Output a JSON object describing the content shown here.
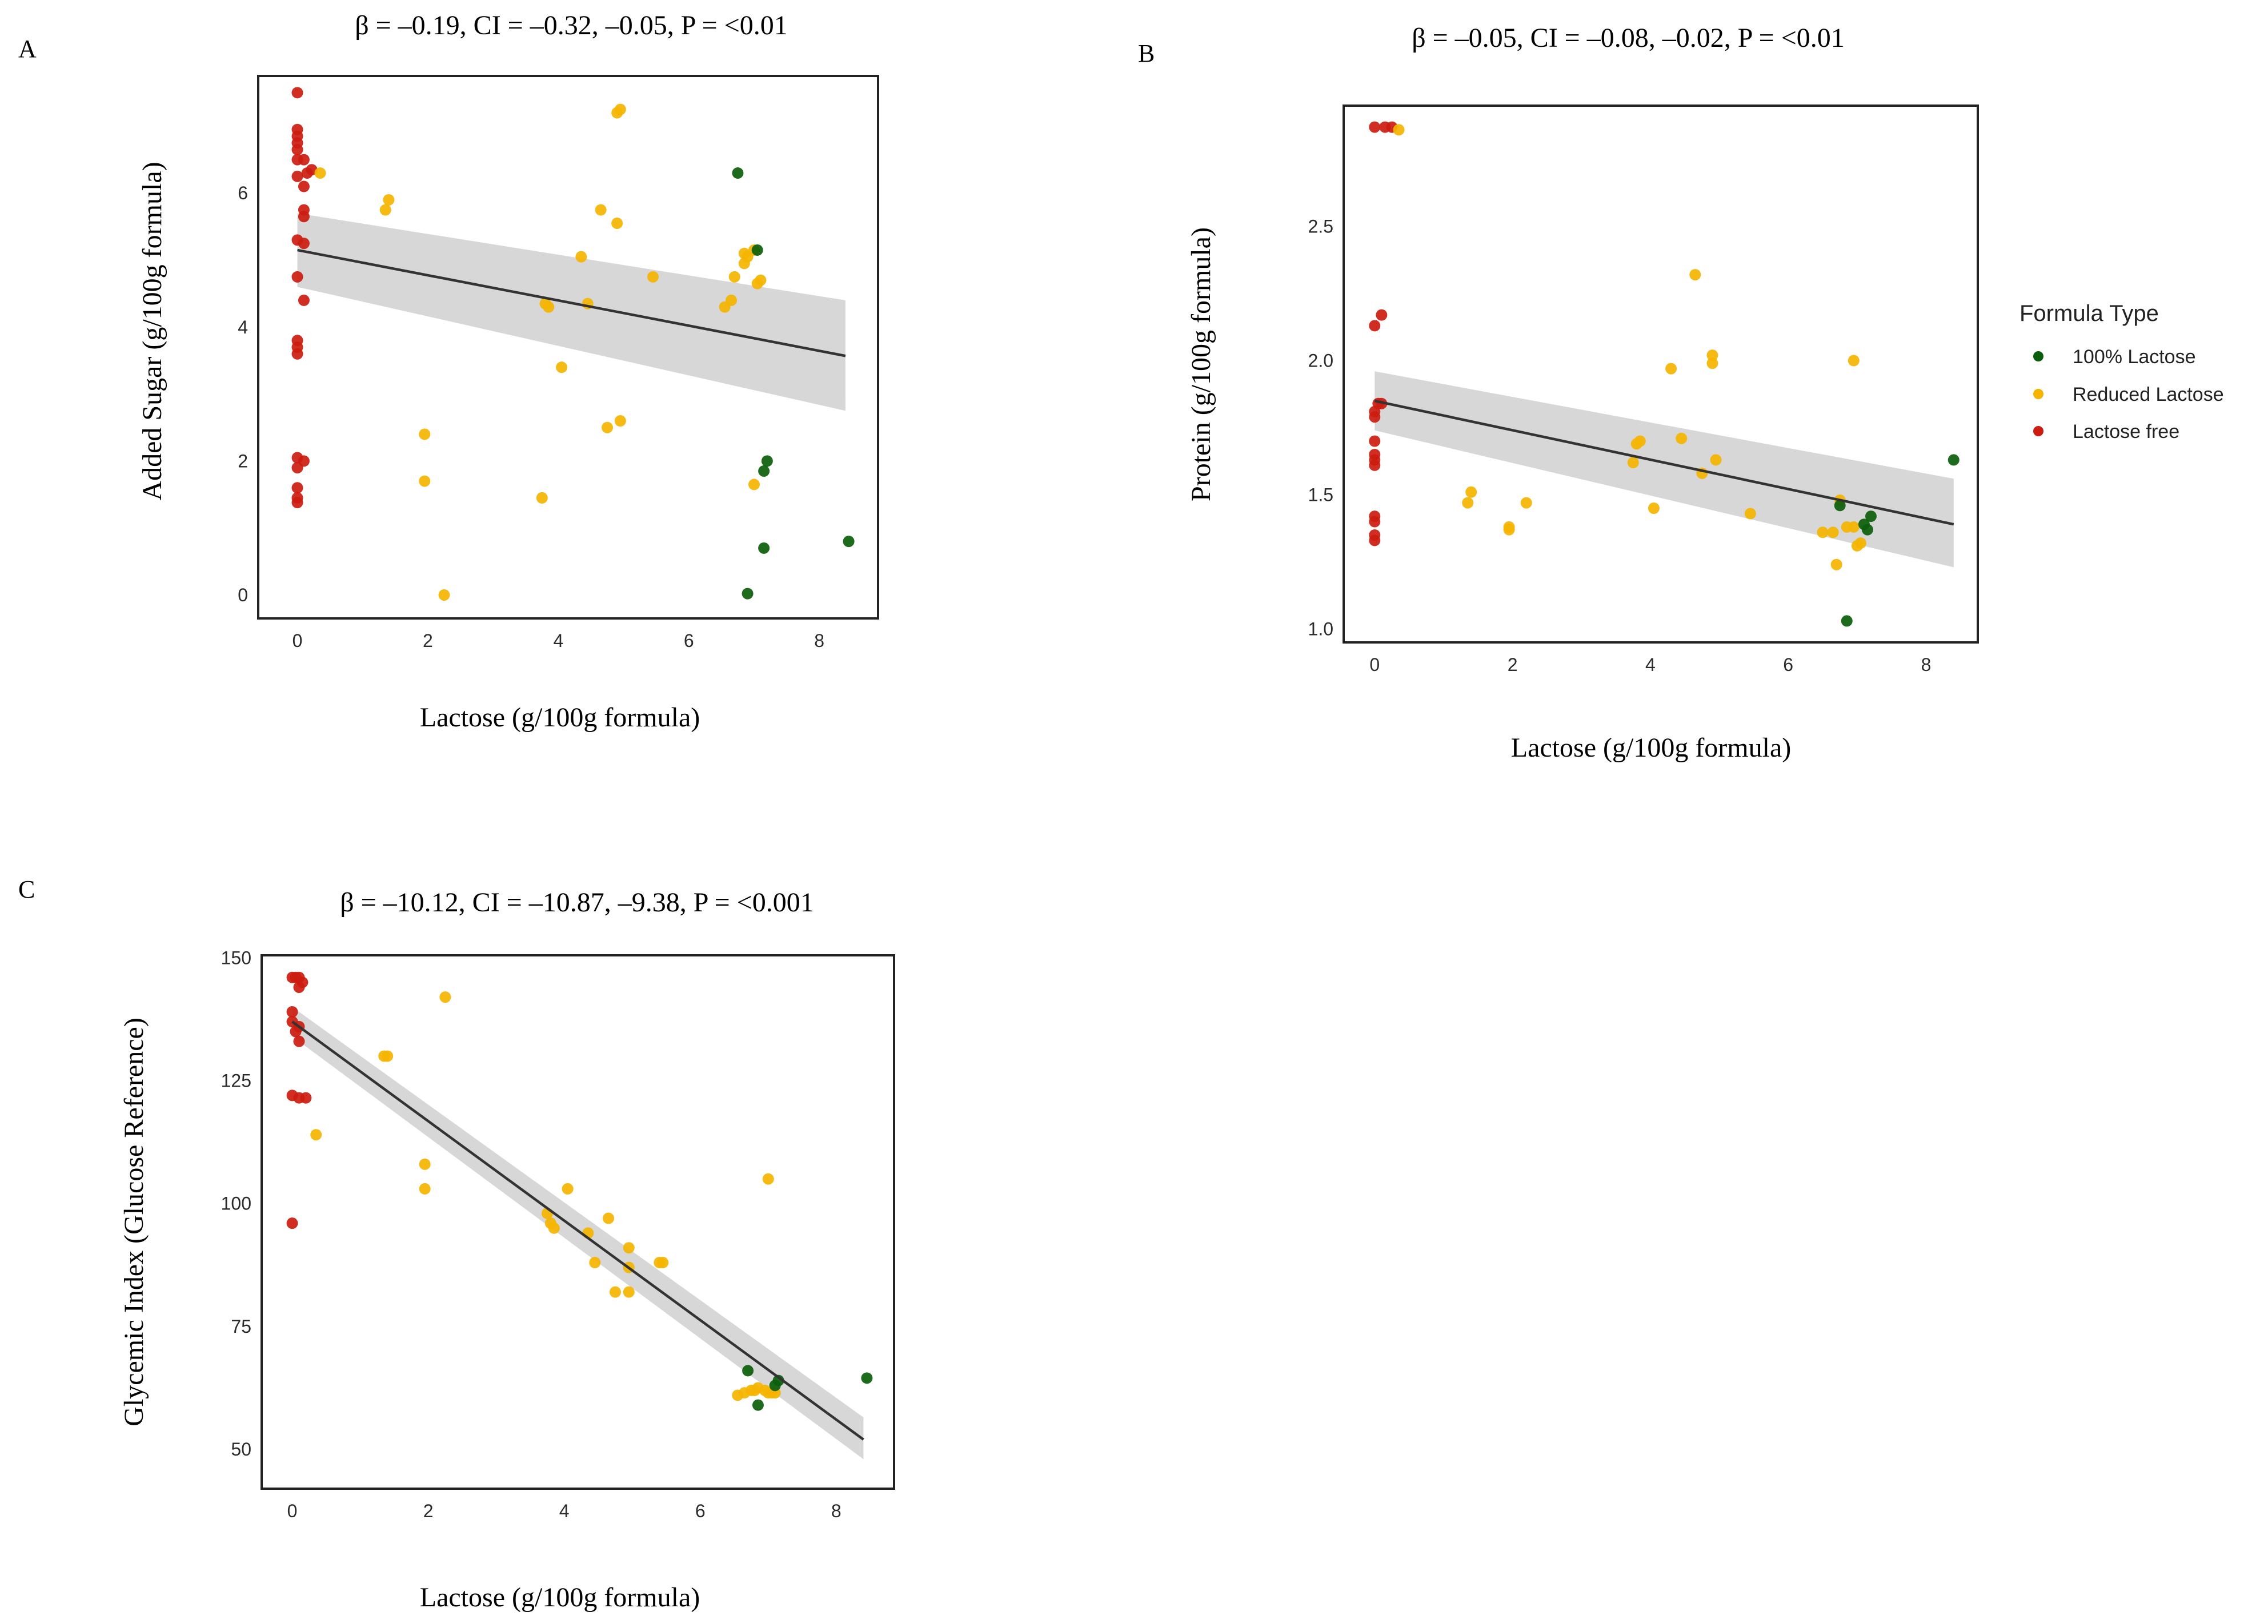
{
  "colors": {
    "lactose100": "#0b5e0b",
    "reduced": "#f5b400",
    "free": "#cc1c10",
    "fit": "#333333",
    "band": "#bdbdbd"
  },
  "legend": {
    "title": "Formula Type",
    "items": [
      {
        "key": "lactose100",
        "label": "100% Lactose"
      },
      {
        "key": "reduced",
        "label": "Reduced Lactose"
      },
      {
        "key": "free",
        "label": "Lactose free"
      }
    ]
  },
  "chart_data": [
    {
      "type": "scatter",
      "panel": "A",
      "title": "β = –0.19, CI = –0.32, –0.05, P = <0.01",
      "xlabel": "Lactose (g/100g formula)",
      "ylabel": "Added Sugar (g/100g formula)",
      "xlim": [
        -0.6,
        8.9
      ],
      "ylim": [
        -0.35,
        7.75
      ],
      "xticks": [
        0,
        2,
        4,
        6,
        8
      ],
      "yticks": [
        0,
        2,
        4,
        6
      ],
      "fit": {
        "x": [
          0,
          8.4
        ],
        "y": [
          5.15,
          3.57
        ],
        "ci_lower": [
          4.6,
          2.75
        ],
        "ci_upper": [
          5.7,
          4.4
        ]
      },
      "series": [
        {
          "name": "Lactose free",
          "color_key": "free",
          "points": [
            [
              0,
              7.5
            ],
            [
              0,
              6.95
            ],
            [
              0,
              6.85
            ],
            [
              0,
              6.75
            ],
            [
              0,
              6.65
            ],
            [
              0,
              6.5
            ],
            [
              0.1,
              6.5
            ],
            [
              0,
              6.25
            ],
            [
              0.15,
              6.3
            ],
            [
              0.22,
              6.35
            ],
            [
              0.1,
              6.1
            ],
            [
              0.1,
              5.75
            ],
            [
              0.1,
              5.65
            ],
            [
              0,
              5.3
            ],
            [
              0.1,
              5.25
            ],
            [
              0,
              4.75
            ],
            [
              0.1,
              4.4
            ],
            [
              0,
              3.8
            ],
            [
              0,
              3.7
            ],
            [
              0,
              3.6
            ],
            [
              0,
              2.05
            ],
            [
              0.1,
              2.0
            ],
            [
              0,
              1.9
            ],
            [
              0,
              1.6
            ],
            [
              0,
              1.45
            ],
            [
              0,
              1.38
            ]
          ]
        },
        {
          "name": "Reduced Lactose",
          "color_key": "reduced",
          "points": [
            [
              0.35,
              6.3
            ],
            [
              1.4,
              5.9
            ],
            [
              1.35,
              5.75
            ],
            [
              4.9,
              7.2
            ],
            [
              4.95,
              7.25
            ],
            [
              4.65,
              5.75
            ],
            [
              4.9,
              5.55
            ],
            [
              4.35,
              5.05
            ],
            [
              5.45,
              4.75
            ],
            [
              3.8,
              4.35
            ],
            [
              3.85,
              4.3
            ],
            [
              4.45,
              4.35
            ],
            [
              4.05,
              3.4
            ],
            [
              6.55,
              4.3
            ],
            [
              6.65,
              4.4
            ],
            [
              6.7,
              4.75
            ],
            [
              6.85,
              4.95
            ],
            [
              6.9,
              5.05
            ],
            [
              7.0,
              5.15
            ],
            [
              6.85,
              5.1
            ],
            [
              7.05,
              4.65
            ],
            [
              7.1,
              4.7
            ],
            [
              1.95,
              2.4
            ],
            [
              1.95,
              1.7
            ],
            [
              3.75,
              1.45
            ],
            [
              4.75,
              2.5
            ],
            [
              4.95,
              2.6
            ],
            [
              7.0,
              1.65
            ],
            [
              2.25,
              0.0
            ]
          ]
        },
        {
          "name": "100% Lactose",
          "color_key": "lactose100",
          "points": [
            [
              6.75,
              6.3
            ],
            [
              7.05,
              5.15
            ],
            [
              7.2,
              2.0
            ],
            [
              7.15,
              1.85
            ],
            [
              7.15,
              0.7
            ],
            [
              8.45,
              0.8
            ],
            [
              6.9,
              0.02
            ]
          ]
        }
      ]
    },
    {
      "type": "scatter",
      "panel": "B",
      "title": "β = –0.05, CI = –0.08, –0.02, P = <0.01",
      "xlabel": "Lactose (g/100g formula)",
      "ylabel": "Protein (g/100g formula)",
      "xlim": [
        -0.45,
        8.75
      ],
      "ylim": [
        0.95,
        2.95
      ],
      "xticks": [
        0,
        2,
        4,
        6,
        8
      ],
      "yticks": [
        1.0,
        1.5,
        2.0,
        2.5
      ],
      "fit": {
        "x": [
          0,
          8.4
        ],
        "y": [
          1.85,
          1.39
        ],
        "ci_lower": [
          1.74,
          1.23
        ],
        "ci_upper": [
          1.96,
          1.56
        ]
      },
      "series": [
        {
          "name": "Lactose free",
          "color_key": "free",
          "points": [
            [
              0,
              2.87
            ],
            [
              0.15,
              2.87
            ],
            [
              0.25,
              2.87
            ],
            [
              0.1,
              2.17
            ],
            [
              0,
              2.13
            ],
            [
              0.05,
              1.84
            ],
            [
              0.1,
              1.84
            ],
            [
              0,
              1.81
            ],
            [
              0,
              1.79
            ],
            [
              0,
              1.7
            ],
            [
              0,
              1.65
            ],
            [
              0,
              1.63
            ],
            [
              0,
              1.61
            ],
            [
              0,
              1.42
            ],
            [
              0,
              1.4
            ],
            [
              0,
              1.35
            ],
            [
              0,
              1.33
            ]
          ]
        },
        {
          "name": "Reduced Lactose",
          "color_key": "reduced",
          "points": [
            [
              0.35,
              2.86
            ],
            [
              4.65,
              2.32
            ],
            [
              4.3,
              1.97
            ],
            [
              4.9,
              2.02
            ],
            [
              4.9,
              1.99
            ],
            [
              6.95,
              2.0
            ],
            [
              3.85,
              1.7
            ],
            [
              3.8,
              1.69
            ],
            [
              4.45,
              1.71
            ],
            [
              3.75,
              1.62
            ],
            [
              4.95,
              1.63
            ],
            [
              4.75,
              1.58
            ],
            [
              1.4,
              1.51
            ],
            [
              1.35,
              1.47
            ],
            [
              2.2,
              1.47
            ],
            [
              4.05,
              1.45
            ],
            [
              5.45,
              1.43
            ],
            [
              1.95,
              1.38
            ],
            [
              1.95,
              1.37
            ],
            [
              6.5,
              1.36
            ],
            [
              6.65,
              1.36
            ],
            [
              6.85,
              1.38
            ],
            [
              6.95,
              1.38
            ],
            [
              7.0,
              1.31
            ],
            [
              7.05,
              1.32
            ],
            [
              6.7,
              1.24
            ],
            [
              6.75,
              1.48
            ]
          ]
        },
        {
          "name": "100% Lactose",
          "color_key": "lactose100",
          "points": [
            [
              6.75,
              1.46
            ],
            [
              7.2,
              1.42
            ],
            [
              7.1,
              1.39
            ],
            [
              7.15,
              1.37
            ],
            [
              8.4,
              1.63
            ],
            [
              6.85,
              1.03
            ]
          ]
        }
      ]
    },
    {
      "type": "scatter",
      "panel": "C",
      "title": "β = –10.12, CI = –10.87, –9.38, P = <0.001",
      "xlabel": "Lactose (g/100g formula)",
      "ylabel": "Glycemic Index (Glucose Reference)",
      "xlim": [
        -0.45,
        8.85
      ],
      "ylim": [
        42,
        150.5
      ],
      "xticks": [
        0,
        2,
        4,
        6,
        8
      ],
      "yticks": [
        50,
        75,
        100,
        125,
        150
      ],
      "fit": {
        "x": [
          0,
          8.4
        ],
        "y": [
          137,
          52
        ],
        "ci_lower": [
          134,
          48
        ],
        "ci_upper": [
          140,
          56.5
        ]
      },
      "series": [
        {
          "name": "Lactose free",
          "color_key": "free",
          "points": [
            [
              0,
              146
            ],
            [
              0.05,
              146
            ],
            [
              0.1,
              146
            ],
            [
              0.15,
              145
            ],
            [
              0.1,
              144
            ],
            [
              0,
              139
            ],
            [
              0,
              137
            ],
            [
              0.1,
              136
            ],
            [
              0.05,
              135
            ],
            [
              0.1,
              133
            ],
            [
              0,
              122
            ],
            [
              0.1,
              121.5
            ],
            [
              0.2,
              121.5
            ],
            [
              0,
              96
            ]
          ]
        },
        {
          "name": "Reduced Lactose",
          "color_key": "reduced",
          "points": [
            [
              2.25,
              142
            ],
            [
              1.35,
              130
            ],
            [
              1.4,
              130
            ],
            [
              0.35,
              114
            ],
            [
              1.95,
              108
            ],
            [
              1.95,
              103
            ],
            [
              4.05,
              103
            ],
            [
              7.0,
              105
            ],
            [
              3.75,
              98
            ],
            [
              4.65,
              97
            ],
            [
              3.8,
              96
            ],
            [
              3.85,
              95
            ],
            [
              4.35,
              94
            ],
            [
              4.95,
              91
            ],
            [
              4.45,
              88
            ],
            [
              5.45,
              88
            ],
            [
              5.4,
              88
            ],
            [
              4.95,
              87
            ],
            [
              4.75,
              82
            ],
            [
              4.95,
              82
            ],
            [
              6.55,
              61
            ],
            [
              6.65,
              61.5
            ],
            [
              6.75,
              62
            ],
            [
              6.8,
              62
            ],
            [
              6.85,
              62.5
            ],
            [
              6.95,
              62
            ],
            [
              7.0,
              61.5
            ],
            [
              7.05,
              61.5
            ],
            [
              7.1,
              61.5
            ]
          ]
        },
        {
          "name": "100% Lactose",
          "color_key": "lactose100",
          "points": [
            [
              6.7,
              66
            ],
            [
              7.15,
              64
            ],
            [
              7.1,
              63
            ],
            [
              8.45,
              64.5
            ],
            [
              6.85,
              59
            ]
          ]
        }
      ]
    }
  ],
  "panels": {
    "A": {
      "letter": "A"
    },
    "B": {
      "letter": "B"
    },
    "C": {
      "letter": "C"
    }
  }
}
